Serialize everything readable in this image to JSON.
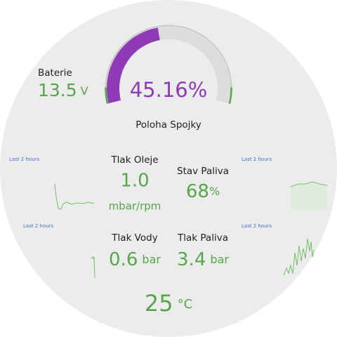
{
  "gauge": {
    "value": 45.16,
    "value_label": "45.16%",
    "label": "Poloha Spojky"
  },
  "battery": {
    "label": "Baterie",
    "value": "13.5",
    "unit": "V"
  },
  "oil": {
    "label": "Tlak Oleje",
    "value": "1.0",
    "unit": "mbar/rpm"
  },
  "fuel_level": {
    "label": "Stav Paliva",
    "value": "68",
    "unit": "%"
  },
  "water": {
    "label": "Tlak Vody",
    "value": "0.6",
    "unit": "bar"
  },
  "fuel_pressure": {
    "label": "Tlak Paliva",
    "value": "3.4",
    "unit": "bar"
  },
  "temperature": {
    "value": "25",
    "unit": "°C"
  },
  "time_ranges": [
    "Last 2 hours",
    "Last 2 hours",
    "Last 2 hours",
    "Last 2 hours"
  ]
}
